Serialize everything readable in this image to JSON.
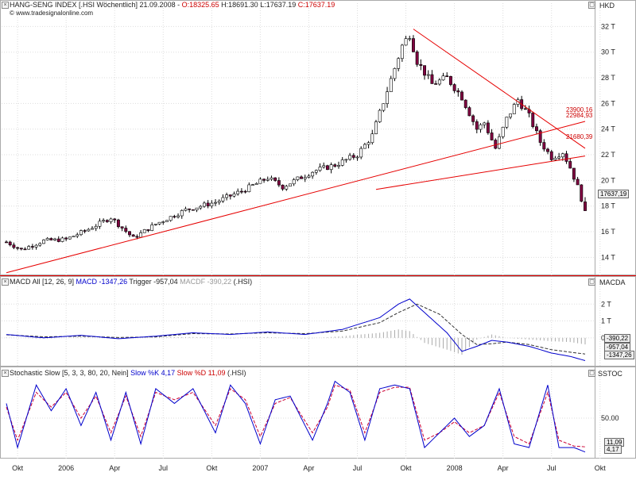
{
  "main_header": {
    "prefix": "HANG-SENG INDEX [.HSI  Wöchentlich] 21.09.2008 - ",
    "open": "O:18325.65",
    "high": " H:18691.30",
    "low": " L:17637.19",
    "close": " C:17637.19",
    "watermark": "© www.tradesignalonline.com"
  },
  "macd_header": {
    "name": "MACD All [12, 26, 9] ",
    "macd": "MACD -1347,26",
    "trigger": " Trigger -957,04",
    "macdf": " MACDF -390,22",
    "symbol": " (.HSI)"
  },
  "stoch_header": {
    "name": "Stochastic Slow [5, 3, 3, 80, 20, Nein] ",
    "k": "Slow %K 4,17",
    "d": " Slow %D 11,09",
    "symbol": " (.HSI)"
  },
  "axis_titles": {
    "main": "HKD",
    "macd": "MACDA",
    "stoch": "SSTOC"
  },
  "value_tags": {
    "last_price": "17637,19",
    "macdf": "-390,22",
    "trigger": "-957,04",
    "macd": "-1347,26",
    "d": "11,09",
    "k": "4,17"
  },
  "trend_labels": [
    "23900,16",
    "22984,93",
    "21680,39"
  ],
  "colors": {
    "up": "#ffffff",
    "down": "#800040",
    "trend": "#e60000",
    "macd": "#0000cc",
    "trigger": "#333333",
    "hist": "#aaaaaa",
    "stoch_k": "#0000cc",
    "stoch_d": "#cc0033"
  },
  "chart_data": [
    {
      "type": "candlestick",
      "title": "HANG-SENG INDEX [.HSI  Wöchentlich]",
      "y_unit": "HKD",
      "y_ticks": [
        14000,
        16000,
        18000,
        20000,
        22000,
        24000,
        26000,
        28000,
        30000,
        32000
      ],
      "y_tick_labels": [
        "14 T",
        "16 T",
        "18 T",
        "20 T",
        "22 T",
        "24 T",
        "26 T",
        "28 T",
        "30 T",
        "32 T"
      ],
      "ylim": [
        12600,
        33200
      ],
      "x_tick_labels": [
        "Okt",
        "2006",
        "Apr",
        "Jul",
        "Okt",
        "2007",
        "Apr",
        "Jul",
        "Okt",
        "2008",
        "Apr",
        "Jul",
        "Okt"
      ],
      "x_tick_weeks": [
        3,
        16,
        29,
        42,
        55,
        68,
        81,
        94,
        107,
        120,
        133,
        146,
        159
      ],
      "n_weeks": 155,
      "anchors": [
        [
          0,
          15200
        ],
        [
          4,
          14600
        ],
        [
          10,
          15300
        ],
        [
          16,
          15400
        ],
        [
          22,
          16200
        ],
        [
          28,
          17100
        ],
        [
          34,
          15500
        ],
        [
          40,
          16600
        ],
        [
          48,
          17700
        ],
        [
          56,
          18300
        ],
        [
          64,
          19300
        ],
        [
          70,
          20200
        ],
        [
          74,
          19500
        ],
        [
          82,
          20700
        ],
        [
          88,
          21200
        ],
        [
          94,
          22000
        ],
        [
          98,
          23500
        ],
        [
          102,
          27000
        ],
        [
          106,
          30500
        ],
        [
          108,
          31400
        ],
        [
          110,
          29300
        ],
        [
          114,
          27500
        ],
        [
          118,
          28000
        ],
        [
          122,
          26500
        ],
        [
          126,
          24000
        ],
        [
          128,
          24500
        ],
        [
          131,
          22500
        ],
        [
          134,
          24800
        ],
        [
          137,
          26300
        ],
        [
          140,
          25000
        ],
        [
          143,
          23000
        ],
        [
          146,
          21800
        ],
        [
          149,
          22200
        ],
        [
          151,
          21000
        ],
        [
          153,
          19500
        ],
        [
          155,
          17637
        ]
      ],
      "final_candle": {
        "open": 18325.65,
        "high": 18691.3,
        "low": 17637.19,
        "close": 17637.19
      },
      "trendlines": [
        {
          "from": [
            0,
            12800
          ],
          "to": [
            155,
            24600
          ]
        },
        {
          "from": [
            99,
            19300
          ],
          "to": [
            155,
            21900
          ]
        },
        {
          "from": [
            109,
            31800
          ],
          "to": [
            155,
            22500
          ]
        }
      ],
      "trend_label_values": [
        23900.16,
        22984.93,
        21680.39
      ]
    },
    {
      "type": "line",
      "title": "MACD All [12, 26, 9]",
      "y_tick_labels": [
        "2 T",
        "1 T",
        "0 T"
      ],
      "y_ticks": [
        2000,
        1000,
        0
      ],
      "ylim": [
        -1700,
        3000
      ],
      "series": [
        {
          "name": "MACD",
          "anchors": [
            [
              0,
              200
            ],
            [
              10,
              0
            ],
            [
              20,
              150
            ],
            [
              30,
              -50
            ],
            [
              40,
              100
            ],
            [
              50,
              300
            ],
            [
              60,
              200
            ],
            [
              70,
              350
            ],
            [
              80,
              200
            ],
            [
              90,
              500
            ],
            [
              100,
              1200
            ],
            [
              105,
              2000
            ],
            [
              108,
              2300
            ],
            [
              112,
              1500
            ],
            [
              118,
              300
            ],
            [
              122,
              -800
            ],
            [
              126,
              -500
            ],
            [
              130,
              -150
            ],
            [
              134,
              -250
            ],
            [
              140,
              -500
            ],
            [
              146,
              -900
            ],
            [
              151,
              -1100
            ],
            [
              155,
              -1347
            ]
          ]
        },
        {
          "name": "Trigger",
          "anchors": [
            [
              0,
              180
            ],
            [
              10,
              60
            ],
            [
              20,
              100
            ],
            [
              30,
              20
            ],
            [
              40,
              60
            ],
            [
              50,
              250
            ],
            [
              60,
              230
            ],
            [
              70,
              300
            ],
            [
              80,
              250
            ],
            [
              90,
              400
            ],
            [
              100,
              900
            ],
            [
              105,
              1500
            ],
            [
              110,
              2000
            ],
            [
              116,
              1400
            ],
            [
              122,
              200
            ],
            [
              126,
              -400
            ],
            [
              130,
              -350
            ],
            [
              134,
              -250
            ],
            [
              140,
              -400
            ],
            [
              146,
              -700
            ],
            [
              151,
              -850
            ],
            [
              155,
              -957
            ]
          ]
        },
        {
          "name": "MACDF",
          "anchors": [
            [
              0,
              20
            ],
            [
              10,
              -50
            ],
            [
              20,
              50
            ],
            [
              30,
              -60
            ],
            [
              40,
              40
            ],
            [
              50,
              50
            ],
            [
              60,
              -30
            ],
            [
              70,
              50
            ],
            [
              80,
              -50
            ],
            [
              90,
              100
            ],
            [
              100,
              300
            ],
            [
              105,
              500
            ],
            [
              108,
              400
            ],
            [
              112,
              -300
            ],
            [
              118,
              -700
            ],
            [
              122,
              -1000
            ],
            [
              126,
              -100
            ],
            [
              130,
              200
            ],
            [
              134,
              0
            ],
            [
              140,
              -100
            ],
            [
              146,
              -200
            ],
            [
              151,
              -250
            ],
            [
              155,
              -390
            ]
          ]
        }
      ]
    },
    {
      "type": "line",
      "title": "Stochastic Slow [5, 3, 3, 80, 20, Nein]",
      "y_tick_labels": [
        "50.00"
      ],
      "y_ticks": [
        50
      ],
      "ylim": [
        -5,
        105
      ],
      "series": [
        {
          "name": "Slow %K",
          "anchors": [
            [
              0,
              70
            ],
            [
              3,
              10
            ],
            [
              8,
              95
            ],
            [
              12,
              60
            ],
            [
              16,
              90
            ],
            [
              20,
              40
            ],
            [
              24,
              85
            ],
            [
              28,
              20
            ],
            [
              32,
              85
            ],
            [
              36,
              15
            ],
            [
              40,
              90
            ],
            [
              45,
              70
            ],
            [
              50,
              90
            ],
            [
              56,
              30
            ],
            [
              60,
              95
            ],
            [
              64,
              70
            ],
            [
              68,
              15
            ],
            [
              72,
              75
            ],
            [
              76,
              80
            ],
            [
              82,
              20
            ],
            [
              86,
              70
            ],
            [
              88,
              100
            ],
            [
              92,
              85
            ],
            [
              96,
              20
            ],
            [
              100,
              90
            ],
            [
              104,
              95
            ],
            [
              108,
              90
            ],
            [
              112,
              10
            ],
            [
              116,
              30
            ],
            [
              120,
              50
            ],
            [
              124,
              25
            ],
            [
              128,
              40
            ],
            [
              132,
              90
            ],
            [
              136,
              15
            ],
            [
              140,
              10
            ],
            [
              145,
              95
            ],
            [
              148,
              10
            ],
            [
              152,
              10
            ],
            [
              155,
              4
            ]
          ]
        },
        {
          "name": "Slow %D",
          "anchors": [
            [
              0,
              65
            ],
            [
              3,
              20
            ],
            [
              8,
              85
            ],
            [
              12,
              65
            ],
            [
              16,
              85
            ],
            [
              20,
              50
            ],
            [
              24,
              80
            ],
            [
              28,
              30
            ],
            [
              32,
              80
            ],
            [
              36,
              25
            ],
            [
              40,
              85
            ],
            [
              45,
              75
            ],
            [
              50,
              85
            ],
            [
              56,
              40
            ],
            [
              60,
              90
            ],
            [
              64,
              75
            ],
            [
              68,
              25
            ],
            [
              72,
              70
            ],
            [
              76,
              78
            ],
            [
              82,
              30
            ],
            [
              86,
              65
            ],
            [
              88,
              95
            ],
            [
              92,
              88
            ],
            [
              96,
              30
            ],
            [
              100,
              85
            ],
            [
              104,
              92
            ],
            [
              108,
              92
            ],
            [
              112,
              20
            ],
            [
              116,
              30
            ],
            [
              120,
              45
            ],
            [
              124,
              30
            ],
            [
              128,
              40
            ],
            [
              132,
              85
            ],
            [
              136,
              25
            ],
            [
              140,
              15
            ],
            [
              145,
              85
            ],
            [
              148,
              20
            ],
            [
              152,
              12
            ],
            [
              155,
              11
            ]
          ]
        }
      ]
    }
  ]
}
